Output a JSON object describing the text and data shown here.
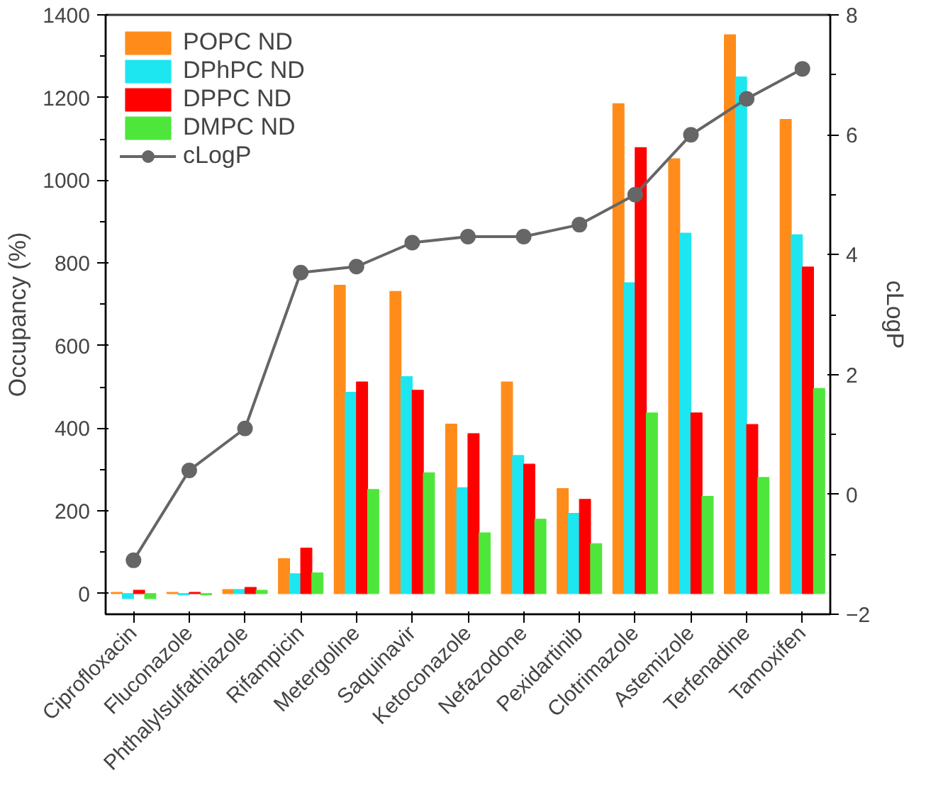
{
  "chart_data": {
    "type": "bar",
    "xlabel": null,
    "ylabel": "Occupancy (%)",
    "y2label": "cLogP",
    "categories": [
      "Ciprofloxacin",
      "Fluconazole",
      "Phthalylsulfathiazole",
      "Rifampicin",
      "Metergoline",
      "Saquinavir",
      "Ketoconazole",
      "Nefazodone",
      "Pexidartinib",
      "Clotrimazole",
      "Astemizole",
      "Terfenadine",
      "Tamoxifen"
    ],
    "series": [
      {
        "name": "POPC ND",
        "color": "#ff8c1a",
        "values": [
          3,
          3,
          10,
          85,
          746,
          731,
          410,
          512,
          254,
          1185,
          1052,
          1352,
          1147
        ]
      },
      {
        "name": "DPhPC ND",
        "color": "#1ee6f0",
        "values": [
          -12,
          -3,
          10,
          48,
          487,
          525,
          256,
          334,
          194,
          752,
          872,
          1250,
          868
        ]
      },
      {
        "name": "DPPC ND",
        "color": "#ff0000",
        "values": [
          8,
          3,
          15,
          110,
          512,
          492,
          387,
          313,
          228,
          1079,
          437,
          409,
          790
        ]
      },
      {
        "name": "DMPC ND",
        "color": "#4fe63c",
        "values": [
          -12,
          -3,
          8,
          50,
          252,
          292,
          147,
          180,
          121,
          437,
          235,
          281,
          496
        ]
      },
      {
        "name": "cLogP",
        "color": "#666666",
        "type": "line",
        "axis": "y2",
        "marker": "circle",
        "values": [
          -1.1,
          0.4,
          1.1,
          3.7,
          3.8,
          4.2,
          4.3,
          4.3,
          4.5,
          5.0,
          6.0,
          6.6,
          7.1
        ]
      }
    ],
    "ylim": [
      -50,
      1400
    ],
    "yticks": [
      0,
      200,
      400,
      600,
      800,
      1000,
      1200,
      1400
    ],
    "y2lim": [
      -2,
      8
    ],
    "y2ticks": [
      -2,
      0,
      2,
      4,
      6,
      8
    ],
    "grid": false,
    "legend": "top left"
  }
}
